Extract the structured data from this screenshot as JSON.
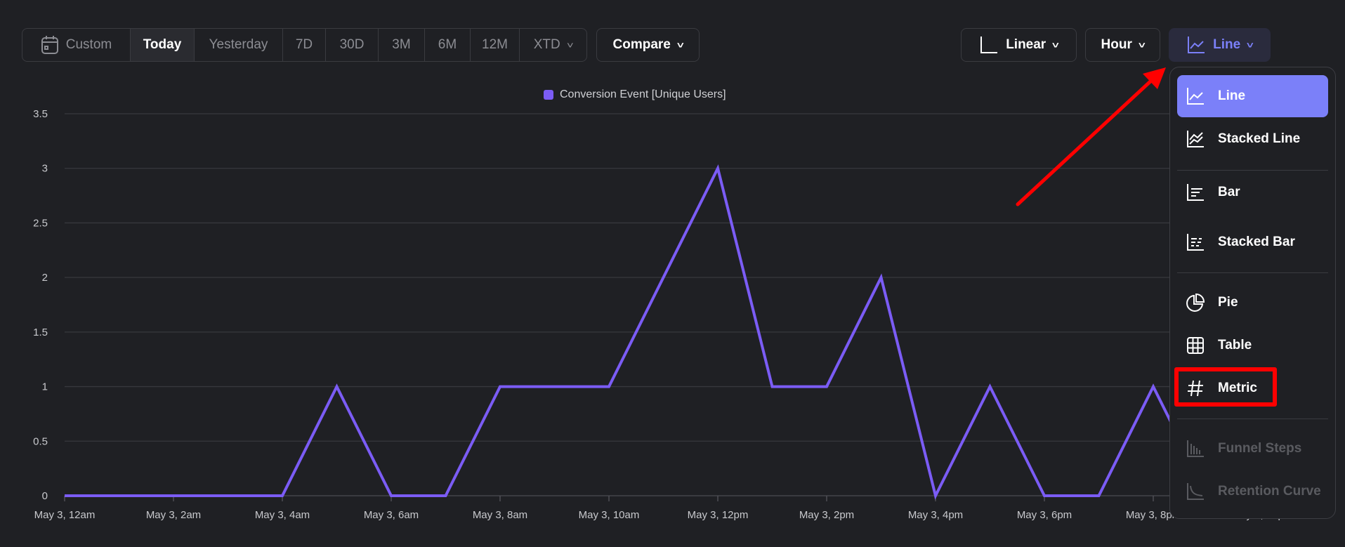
{
  "toolbar": {
    "date_ranges": [
      {
        "label": "Custom",
        "icon": "calendar-icon"
      },
      {
        "label": "Today",
        "active": true
      },
      {
        "label": "Yesterday"
      },
      {
        "label": "7D"
      },
      {
        "label": "30D"
      },
      {
        "label": "3M"
      },
      {
        "label": "6M"
      },
      {
        "label": "12M"
      },
      {
        "label": "XTD"
      }
    ],
    "compare": "Compare",
    "scale": "Linear",
    "interval": "Hour",
    "chart_type": "Line",
    "accent": "#7b80f9"
  },
  "menu": {
    "items": [
      {
        "label": "Line",
        "icon": "line-chart-icon",
        "selected": true
      },
      {
        "label": "Stacked Line",
        "icon": "stacked-line-icon"
      },
      {
        "label": "Bar",
        "icon": "bar-chart-icon"
      },
      {
        "label": "Stacked Bar",
        "icon": "stacked-bar-icon"
      },
      {
        "label": "Pie",
        "icon": "pie-chart-icon"
      },
      {
        "label": "Table",
        "icon": "table-icon"
      },
      {
        "label": "Metric",
        "icon": "hash-icon",
        "highlighted": true
      },
      {
        "label": "Funnel Steps",
        "icon": "funnel-steps-icon",
        "disabled": true
      },
      {
        "label": "Retention Curve",
        "icon": "retention-curve-icon",
        "disabled": true
      }
    ]
  },
  "chart_data": {
    "type": "line",
    "legend": "Conversion Event [Unique Users]",
    "legend_position": "top",
    "color": "#7b5cf5",
    "x": [
      "May 3, 12am",
      "May 3, 1am",
      "May 3, 2am",
      "May 3, 3am",
      "May 3, 4am",
      "May 3, 5am",
      "May 3, 6am",
      "May 3, 7am",
      "May 3, 8am",
      "May 3, 9am",
      "May 3, 10am",
      "May 3, 11am",
      "May 3, 12pm",
      "May 3, 1pm",
      "May 3, 2pm",
      "May 3, 3pm",
      "May 3, 4pm",
      "May 3, 5pm",
      "May 3, 6pm",
      "May 3, 7pm",
      "May 3, 8pm",
      "May 3, 9pm"
    ],
    "values": [
      0,
      0,
      0,
      0,
      0,
      1,
      0,
      0,
      1,
      1,
      1,
      2,
      3,
      1,
      1,
      2,
      0,
      1,
      0,
      0,
      1,
      0
    ],
    "x_tick_labels": [
      "May 3, 12am",
      "May 3, 2am",
      "May 3, 4am",
      "May 3, 6am",
      "May 3, 8am",
      "May 3, 10am",
      "May 3, 12pm",
      "May 3, 2pm",
      "May 3, 4pm",
      "May 3, 6pm",
      "May 3, 8pm",
      "May 3, 10pm"
    ],
    "y_ticks": [
      "0",
      "0.5",
      "1",
      "1.5",
      "2",
      "2.5",
      "3",
      "3.5"
    ],
    "ylim": [
      0,
      3.5
    ],
    "grid": true
  }
}
